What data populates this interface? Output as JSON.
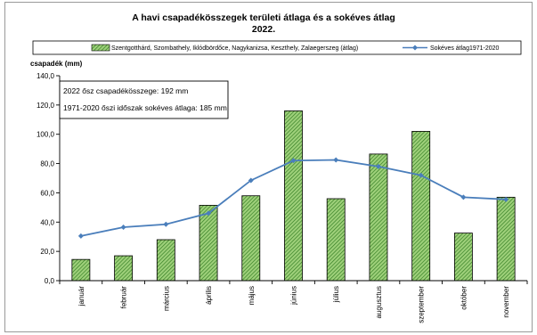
{
  "chart_data": {
    "type": "bar",
    "title_line1": "A  havi csapadékösszegek területi átlaga és a sokéves átlag",
    "title_line2": "2022.",
    "ylabel": "csapadék (mm)",
    "xlabel": "",
    "ylim": [
      0,
      140
    ],
    "ytick_step": 20,
    "ytick_labels": [
      "0,0",
      "20,0",
      "40,0",
      "60,0",
      "80,0",
      "100,0",
      "120,0",
      "140,0"
    ],
    "categories": [
      "január",
      "február",
      "március",
      "április",
      "május",
      "június",
      "július",
      "augusztus",
      "szeptember",
      "október",
      "november"
    ],
    "series": [
      {
        "name": "Szentgotthárd, Szombathely, Iklódbördőce, Nagykanizsa, Keszthely, Zalaegerszeg (átlag)",
        "kind": "bar",
        "pattern": "green-hatch",
        "values": [
          14.5,
          17,
          28,
          51.5,
          58,
          116,
          56,
          86.5,
          102,
          32.5,
          57
        ]
      },
      {
        "name": "Sokéves átlag1971-2020",
        "kind": "line",
        "color": "#4a7ebb",
        "values": [
          30.5,
          36.5,
          38.5,
          46,
          68.5,
          82,
          82.5,
          78,
          72,
          57,
          55.5
        ]
      }
    ],
    "legend_position": "top",
    "grid": false,
    "annotations": [
      "2022 ősz csapadékösszege: 192 mm",
      "1971-2020 őszi időszak sokéves átlaga: 185 mm"
    ]
  }
}
